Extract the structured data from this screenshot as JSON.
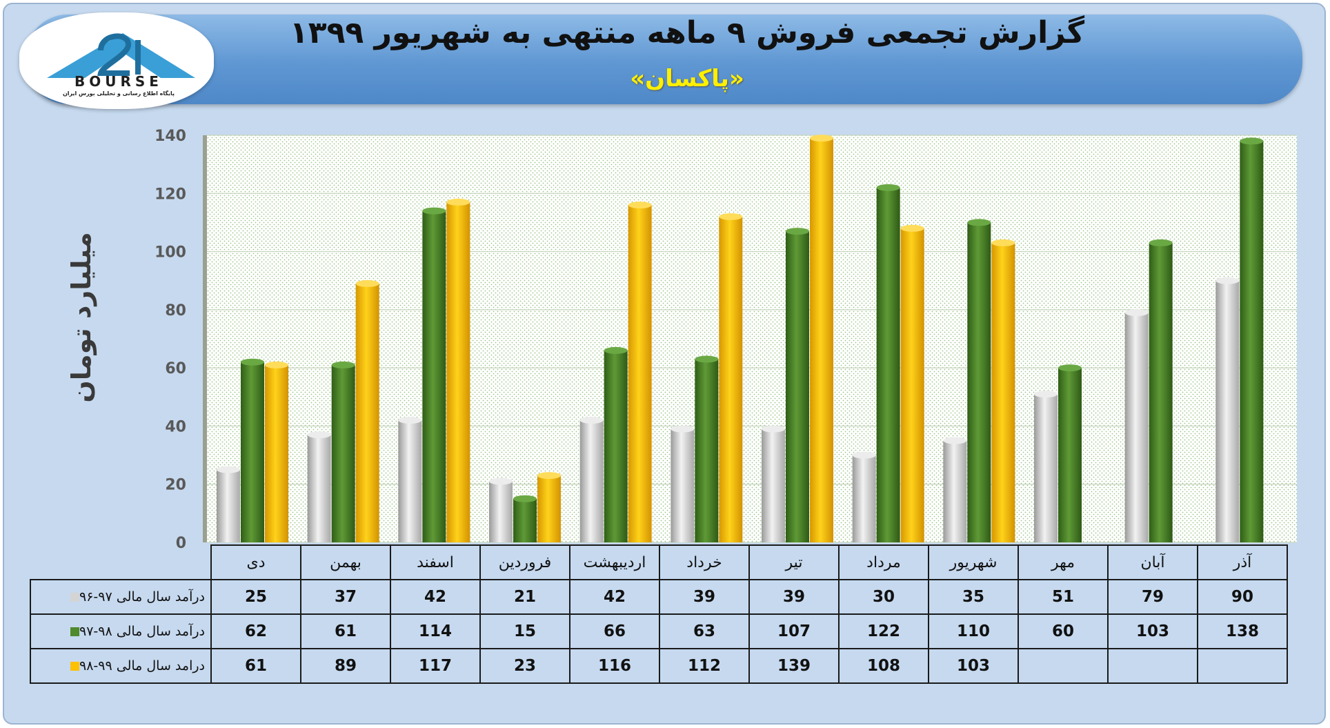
{
  "logo": {
    "text": "BOURSE",
    "caption": "پایگاه اطلاع رسانی و تحلیلی بورس ایران"
  },
  "header": {
    "title": "گزارش تجمعی فروش ۹ ماهه منتهی به شهریور ۱۳۹۹",
    "subtitle": "«پاکسان»"
  },
  "colors": {
    "series1": "#d4d4d4",
    "series2": "#4f8a2c",
    "series3": "#ffc000",
    "banner": "#5f97d3",
    "title": "#111111",
    "subtitle": "#ffef00"
  },
  "chart_data": {
    "type": "bar",
    "ylabel": "میلیارد تومان",
    "ylim": [
      0,
      140
    ],
    "yticks": [
      0,
      20,
      40,
      60,
      80,
      100,
      120,
      140
    ],
    "grid": true,
    "categories": [
      "دی",
      "بهمن",
      "اسفند",
      "فروردین",
      "اردیبهشت",
      "خرداد",
      "تیر",
      "مرداد",
      "شهریور",
      "مهر",
      "آبان",
      "آذر"
    ],
    "series": [
      {
        "name": "درآمد سال مالی ۹۷-۹۶",
        "color": "#d4d4d4",
        "values": [
          25,
          37,
          42,
          21,
          42,
          39,
          39,
          30,
          35,
          51,
          79,
          90
        ]
      },
      {
        "name": "درآمد سال مالی ۹۸-۹۷",
        "color": "#4f8a2c",
        "values": [
          62,
          61,
          114,
          15,
          66,
          63,
          107,
          122,
          110,
          60,
          103,
          138
        ]
      },
      {
        "name": "درامد سال مالی ۹۹-۹۸",
        "color": "#ffc000",
        "values": [
          61,
          89,
          117,
          23,
          116,
          112,
          139,
          108,
          103,
          null,
          null,
          null
        ]
      }
    ]
  }
}
